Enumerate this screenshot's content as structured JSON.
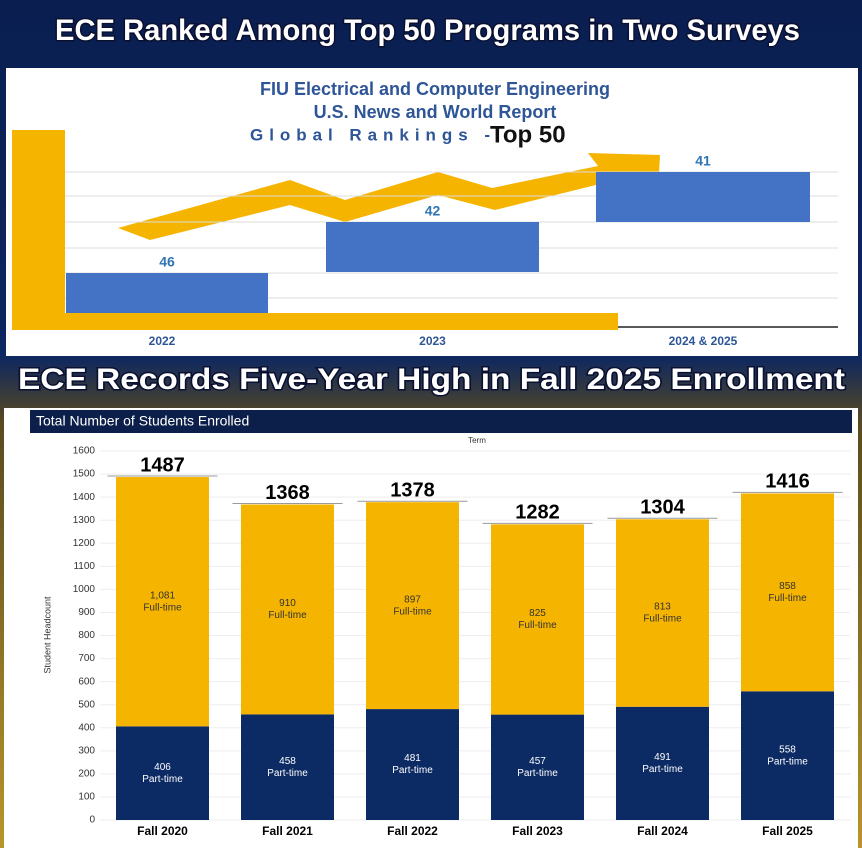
{
  "chart_data": [
    {
      "type": "ranking_bar",
      "banner": "ECE Ranked Among Top 50 Programs in Two Surveys",
      "title_lines": [
        "FIU Electrical and Computer Engineering",
        "U.S. News and World Report",
        "Global Rankings - "
      ],
      "title_emphasis": "Top 50",
      "categories": [
        "2022",
        "2023",
        "2024 & 2025"
      ],
      "values": [
        46,
        42,
        41
      ],
      "color": "#4472c4"
    },
    {
      "type": "stacked_bar",
      "banner": "ECE Records Five-Year High in Fall 2025 Enrollment",
      "title": "Total Number of Students Enrolled",
      "x_label": "Term",
      "y_label": "Student Headcount",
      "categories": [
        "Fall 2020",
        "Fall 2021",
        "Fall 2022",
        "Fall 2023",
        "Fall 2024",
        "Fall 2025"
      ],
      "series": [
        {
          "name": "Part-time",
          "color": "#0c2a63",
          "values": [
            406,
            458,
            481,
            457,
            491,
            558
          ]
        },
        {
          "name": "Full-time",
          "color": "#f5b400",
          "values": [
            1081,
            910,
            897,
            825,
            813,
            858
          ],
          "value_labels": [
            "1,081",
            "910",
            "897",
            "825",
            "813",
            "858"
          ]
        }
      ],
      "totals": [
        1487,
        1368,
        1378,
        1282,
        1304,
        1416
      ],
      "ylim": [
        0,
        1600
      ],
      "yticks": [
        0,
        100,
        200,
        300,
        400,
        500,
        600,
        700,
        800,
        900,
        1000,
        1100,
        1200,
        1300,
        1400,
        1500,
        1600
      ],
      "grid": true
    }
  ]
}
